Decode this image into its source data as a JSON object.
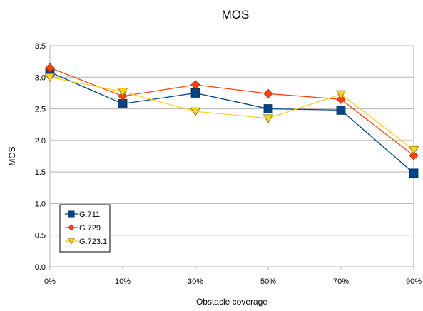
{
  "chart_data": {
    "type": "line",
    "title": "MOS",
    "xlabel": "Obstacle coverage",
    "ylabel": "MOS",
    "categories": [
      "0%",
      "10%",
      "30%",
      "50%",
      "70%",
      "90%"
    ],
    "ylim": [
      0,
      3.5
    ],
    "yticks": [
      "0.0",
      "0.5",
      "1.0",
      "1.5",
      "2.0",
      "2.5",
      "3.0",
      "3.5"
    ],
    "grid": true,
    "legend_position": "bottom-left",
    "series": [
      {
        "name": "G.711",
        "values": [
          3.08,
          2.58,
          2.75,
          2.5,
          2.48,
          1.48
        ],
        "color": "#004586",
        "marker": "square"
      },
      {
        "name": "G.729",
        "values": [
          3.15,
          2.7,
          2.88,
          2.74,
          2.65,
          1.76
        ],
        "color": "#ff420e",
        "marker": "diamond"
      },
      {
        "name": "G.723.1",
        "values": [
          3.0,
          2.77,
          2.46,
          2.35,
          2.73,
          1.85
        ],
        "color": "#ffd320",
        "marker": "triangle-down"
      }
    ]
  }
}
